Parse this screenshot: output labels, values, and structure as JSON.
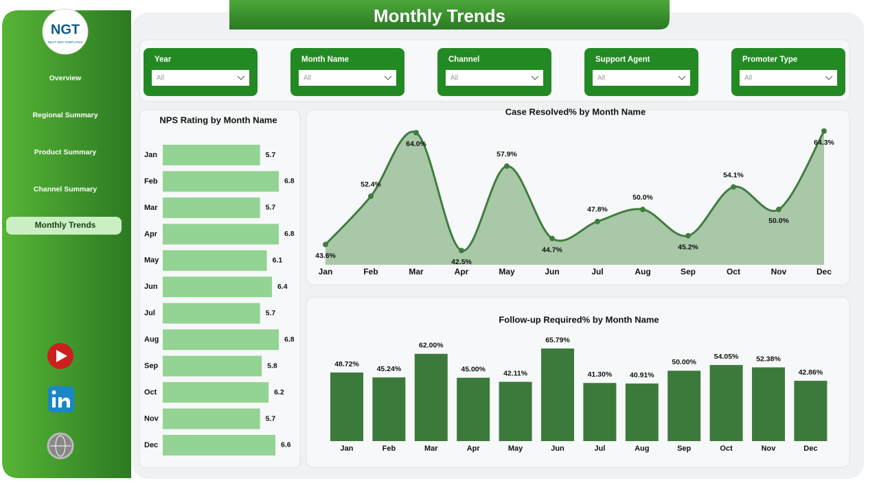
{
  "header": {
    "title": "Monthly Trends"
  },
  "logo": {
    "name": "NGT",
    "tagline": "NEXT GEN TEMPLATES"
  },
  "nav": {
    "items": [
      "Overview",
      "Regional Summary",
      "Product Summary",
      "Channel Summary",
      "Monthly Trends"
    ],
    "active": 4
  },
  "filters": [
    {
      "label": "Year",
      "value": "All"
    },
    {
      "label": "Month Name",
      "value": "All"
    },
    {
      "label": "Channel",
      "value": "All"
    },
    {
      "label": "Support Agent",
      "value": "All"
    },
    {
      "label": "Promoter Type",
      "value": "All"
    }
  ],
  "chart_data": [
    {
      "type": "bar",
      "orientation": "horizontal",
      "title": "NPS Rating by Month Name",
      "categories": [
        "Jan",
        "Feb",
        "Mar",
        "Apr",
        "May",
        "Jun",
        "Jul",
        "Aug",
        "Sep",
        "Oct",
        "Nov",
        "Dec"
      ],
      "values": [
        5.7,
        6.8,
        5.7,
        6.8,
        6.1,
        6.4,
        5.7,
        6.8,
        5.8,
        6.2,
        5.7,
        6.6
      ],
      "color": "#93d393"
    },
    {
      "type": "area",
      "title": "Case Resolved% by Month Name",
      "categories": [
        "Jan",
        "Feb",
        "Mar",
        "Apr",
        "May",
        "Jun",
        "Jul",
        "Aug",
        "Sep",
        "Oct",
        "Nov",
        "Dec"
      ],
      "values": [
        43.6,
        52.4,
        64.0,
        42.5,
        57.9,
        44.7,
        47.8,
        50.0,
        45.2,
        54.1,
        50.0,
        64.3
      ],
      "value_labels": [
        "43.6%",
        "52.4%",
        "64.0%",
        "42.5%",
        "57.9%",
        "44.7%",
        "47.8%",
        "50.0%",
        "45.2%",
        "54.1%",
        "50.0%",
        "64.3%"
      ],
      "color": "#3f7c3f",
      "fill_color": "#a9c8a7"
    },
    {
      "type": "bar",
      "orientation": "vertical",
      "title": "Follow-up Required% by Month Name",
      "categories": [
        "Jan",
        "Feb",
        "Mar",
        "Apr",
        "May",
        "Jun",
        "Jul",
        "Aug",
        "Sep",
        "Oct",
        "Nov",
        "Dec"
      ],
      "values": [
        48.72,
        45.24,
        62.0,
        45.0,
        42.11,
        65.79,
        41.3,
        40.91,
        50.0,
        54.05,
        52.38,
        42.86
      ],
      "value_labels": [
        "48.72%",
        "45.24%",
        "62.00%",
        "45.00%",
        "42.11%",
        "65.79%",
        "41.30%",
        "40.91%",
        "50.00%",
        "54.05%",
        "52.38%",
        "42.86%"
      ],
      "color": "#3c7a3c"
    }
  ]
}
